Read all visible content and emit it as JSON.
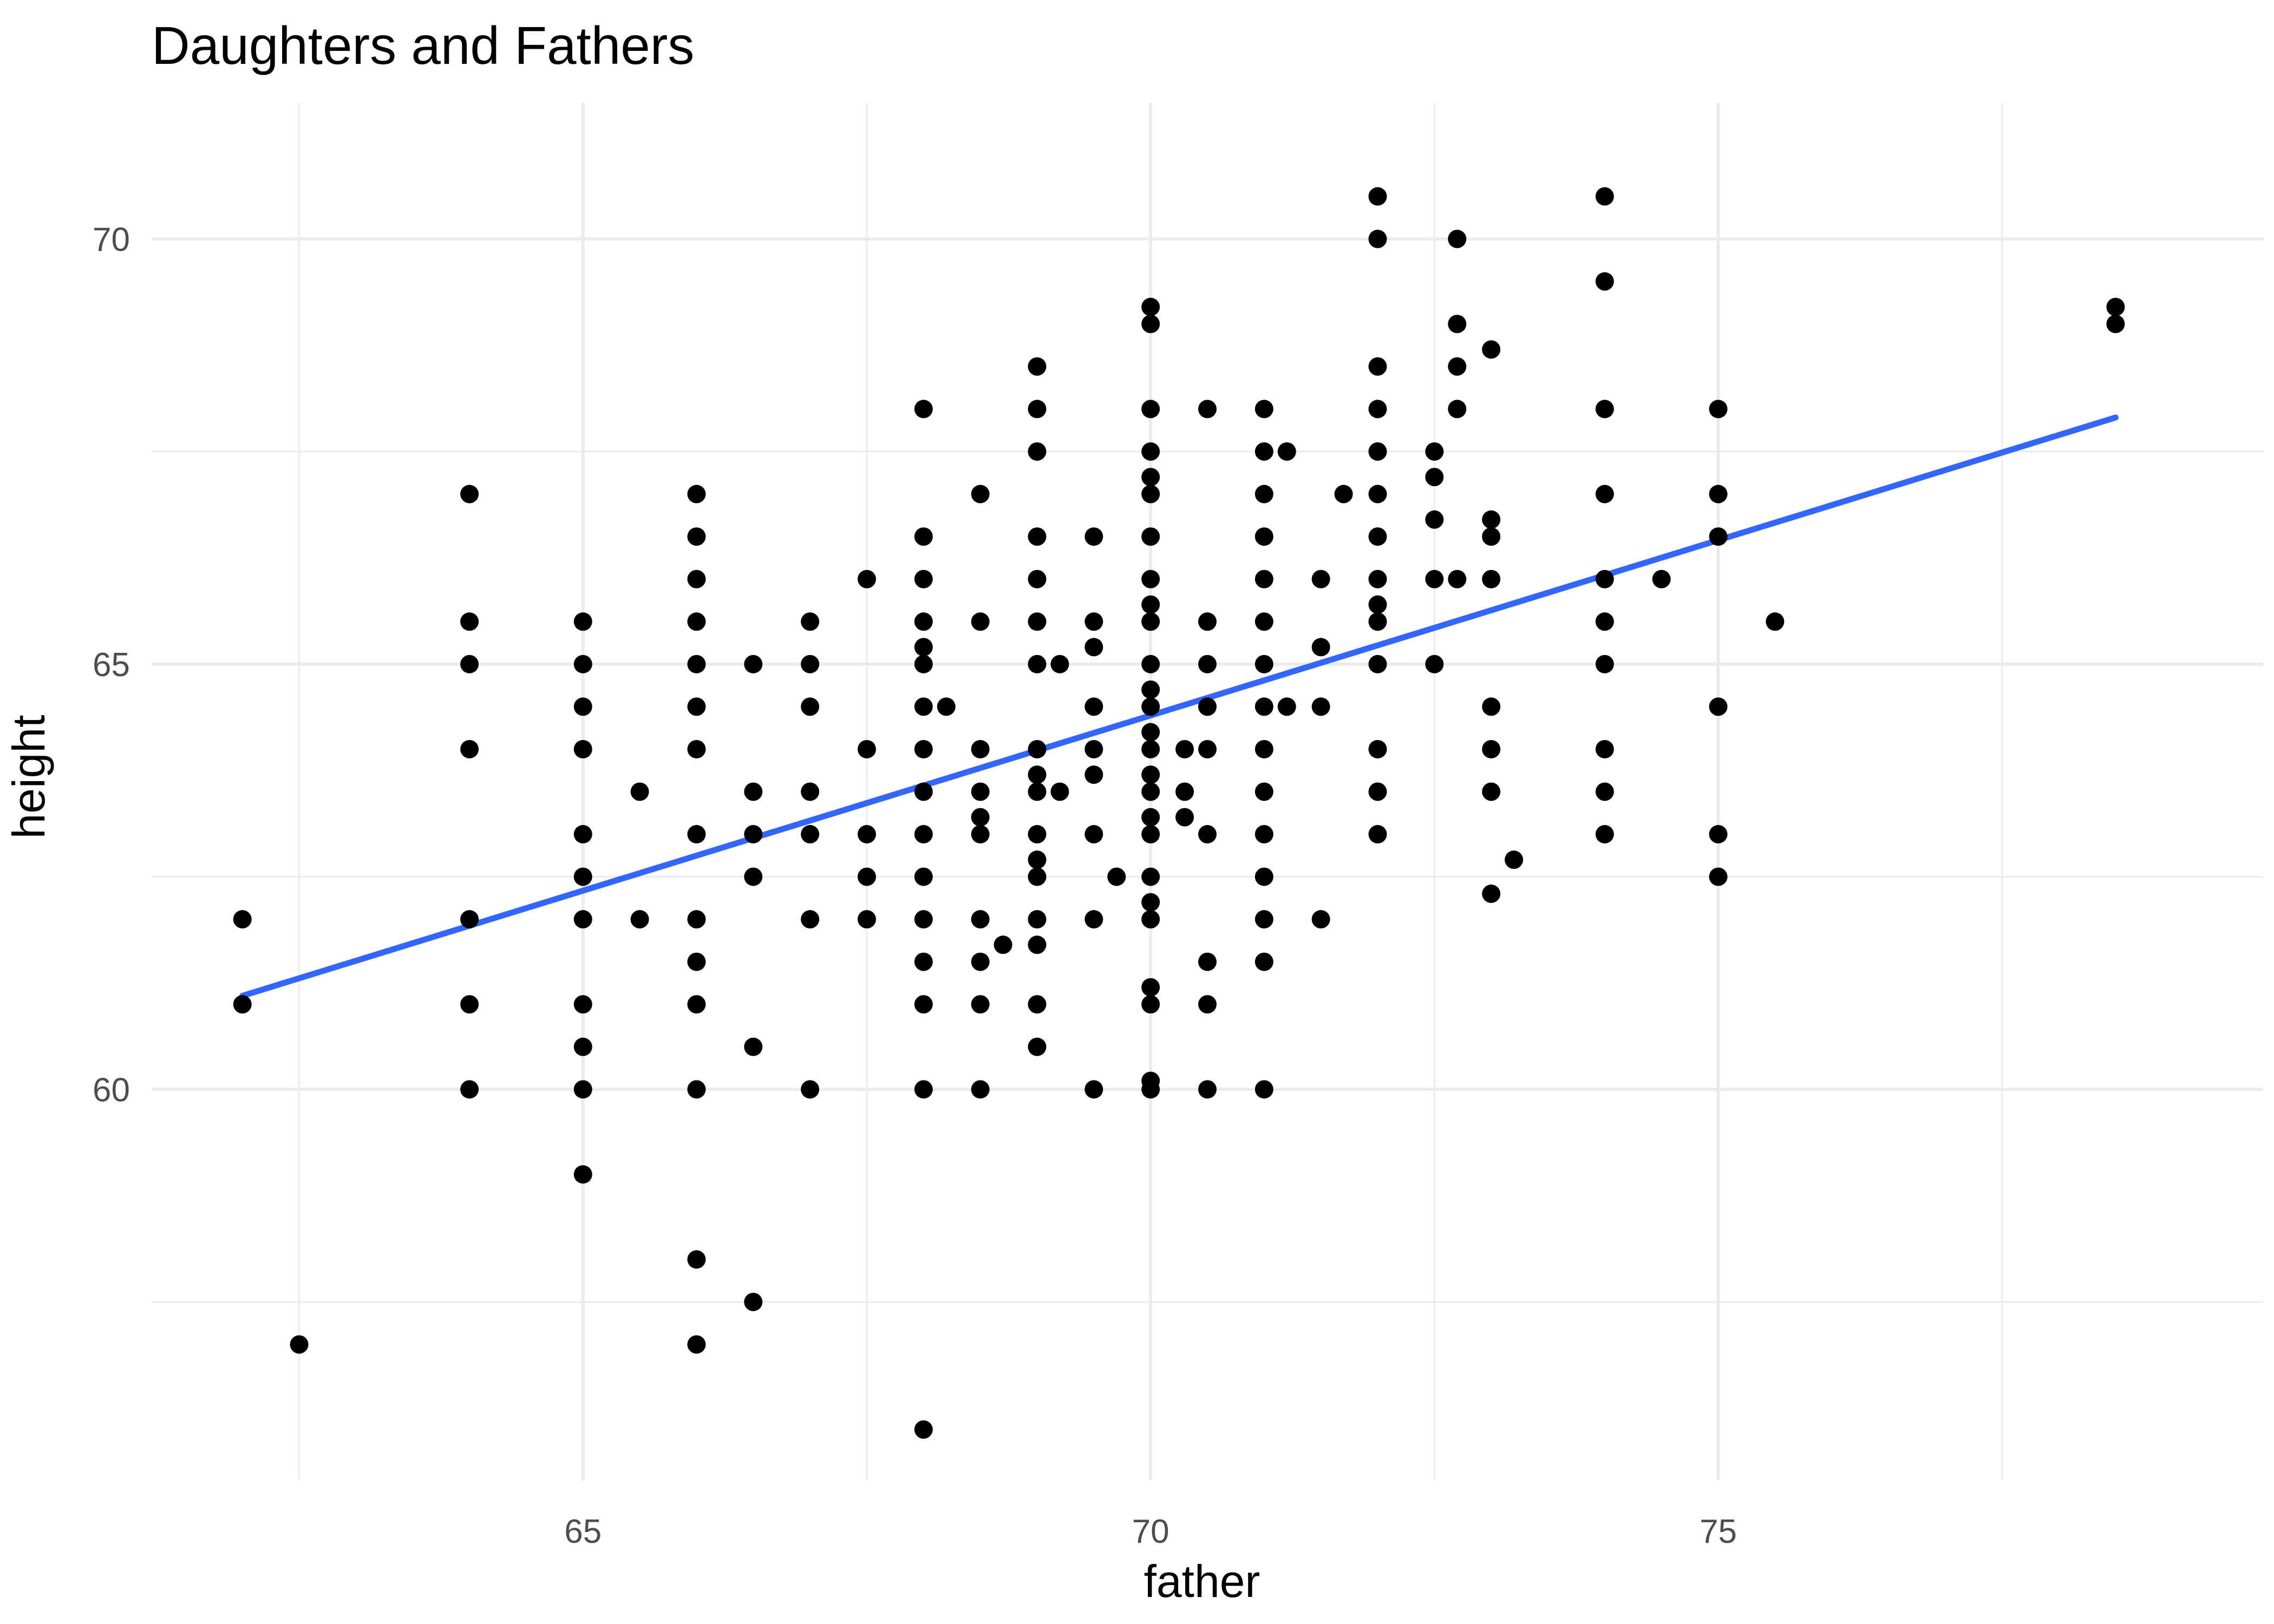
{
  "chart_data": {
    "type": "scatter",
    "title": "Daughters and Fathers",
    "xlabel": "father",
    "ylabel": "height",
    "xlim": [
      61.2,
      79.8
    ],
    "ylim": [
      55.4,
      71.6
    ],
    "x_major_ticks": [
      65,
      70,
      75
    ],
    "x_minor_ticks": [
      62.5,
      67.5,
      72.5,
      77.5
    ],
    "y_major_ticks": [
      60,
      65,
      70
    ],
    "y_minor_ticks": [
      57.5,
      62.5,
      67.5
    ],
    "grid": true,
    "legend": "none",
    "point_color": "#000000",
    "line_color": "#3366ff",
    "regression_line": {
      "x": [
        62.0,
        78.5
      ],
      "y": [
        61.1,
        67.9
      ]
    },
    "points": [
      [
        62.0,
        62.0
      ],
      [
        62.0,
        61.0
      ],
      [
        62.5,
        57.0
      ],
      [
        64.0,
        67.0
      ],
      [
        64.0,
        65.5
      ],
      [
        64.0,
        65.0
      ],
      [
        64.0,
        64.0
      ],
      [
        64.0,
        62.0
      ],
      [
        64.0,
        61.0
      ],
      [
        64.0,
        60.0
      ],
      [
        65.0,
        65.5
      ],
      [
        65.0,
        65.0
      ],
      [
        65.0,
        64.5
      ],
      [
        65.0,
        64.0
      ],
      [
        65.0,
        63.0
      ],
      [
        65.0,
        62.5
      ],
      [
        65.0,
        62.0
      ],
      [
        65.0,
        61.0
      ],
      [
        65.0,
        60.5
      ],
      [
        65.0,
        60.0
      ],
      [
        65.0,
        59.0
      ],
      [
        65.5,
        63.5
      ],
      [
        65.5,
        62.0
      ],
      [
        66.0,
        67.0
      ],
      [
        66.0,
        66.5
      ],
      [
        66.0,
        66.0
      ],
      [
        66.0,
        65.5
      ],
      [
        66.0,
        65.0
      ],
      [
        66.0,
        64.5
      ],
      [
        66.0,
        64.0
      ],
      [
        66.0,
        63.0
      ],
      [
        66.0,
        62.0
      ],
      [
        66.0,
        61.5
      ],
      [
        66.0,
        61.0
      ],
      [
        66.0,
        60.0
      ],
      [
        66.0,
        58.0
      ],
      [
        66.0,
        57.0
      ],
      [
        66.5,
        65.0
      ],
      [
        66.5,
        63.5
      ],
      [
        66.5,
        63.0
      ],
      [
        66.5,
        62.5
      ],
      [
        66.5,
        60.5
      ],
      [
        66.5,
        57.5
      ],
      [
        67.0,
        65.5
      ],
      [
        67.0,
        65.0
      ],
      [
        67.0,
        64.5
      ],
      [
        67.0,
        63.5
      ],
      [
        67.0,
        63.0
      ],
      [
        67.0,
        62.0
      ],
      [
        67.0,
        60.0
      ],
      [
        67.5,
        66.0
      ],
      [
        67.5,
        64.0
      ],
      [
        67.5,
        63.0
      ],
      [
        67.5,
        62.5
      ],
      [
        67.5,
        62.0
      ],
      [
        68.0,
        68.0
      ],
      [
        68.0,
        66.5
      ],
      [
        68.0,
        66.0
      ],
      [
        68.0,
        65.5
      ],
      [
        68.0,
        65.2
      ],
      [
        68.0,
        65.0
      ],
      [
        68.0,
        64.5
      ],
      [
        68.0,
        64.0
      ],
      [
        68.0,
        63.5
      ],
      [
        68.0,
        63.0
      ],
      [
        68.0,
        62.5
      ],
      [
        68.0,
        62.0
      ],
      [
        68.0,
        61.5
      ],
      [
        68.0,
        61.0
      ],
      [
        68.0,
        60.0
      ],
      [
        68.0,
        56.0
      ],
      [
        68.2,
        64.5
      ],
      [
        68.5,
        67.0
      ],
      [
        68.5,
        65.5
      ],
      [
        68.5,
        64.0
      ],
      [
        68.5,
        63.5
      ],
      [
        68.5,
        63.2
      ],
      [
        68.5,
        63.0
      ],
      [
        68.5,
        62.0
      ],
      [
        68.5,
        61.5
      ],
      [
        68.5,
        61.0
      ],
      [
        68.5,
        60.0
      ],
      [
        68.7,
        61.7
      ],
      [
        69.0,
        68.5
      ],
      [
        69.0,
        68.0
      ],
      [
        69.0,
        67.5
      ],
      [
        69.0,
        66.5
      ],
      [
        69.0,
        66.0
      ],
      [
        69.0,
        65.5
      ],
      [
        69.0,
        65.0
      ],
      [
        69.0,
        64.0
      ],
      [
        69.0,
        63.7
      ],
      [
        69.0,
        63.5
      ],
      [
        69.0,
        63.0
      ],
      [
        69.0,
        62.7
      ],
      [
        69.0,
        62.5
      ],
      [
        69.0,
        62.0
      ],
      [
        69.0,
        61.7
      ],
      [
        69.0,
        61.0
      ],
      [
        69.0,
        60.5
      ],
      [
        69.2,
        65.0
      ],
      [
        69.2,
        63.5
      ],
      [
        69.5,
        66.5
      ],
      [
        69.5,
        65.5
      ],
      [
        69.5,
        65.2
      ],
      [
        69.5,
        64.5
      ],
      [
        69.5,
        64.0
      ],
      [
        69.5,
        63.7
      ],
      [
        69.5,
        63.0
      ],
      [
        69.5,
        62.0
      ],
      [
        69.5,
        60.0
      ],
      [
        69.7,
        62.5
      ],
      [
        70.0,
        69.2
      ],
      [
        70.0,
        69.0
      ],
      [
        70.0,
        68.0
      ],
      [
        70.0,
        67.5
      ],
      [
        70.0,
        67.2
      ],
      [
        70.0,
        67.0
      ],
      [
        70.0,
        66.5
      ],
      [
        70.0,
        66.0
      ],
      [
        70.0,
        65.7
      ],
      [
        70.0,
        65.5
      ],
      [
        70.0,
        65.0
      ],
      [
        70.0,
        64.7
      ],
      [
        70.0,
        64.5
      ],
      [
        70.0,
        64.2
      ],
      [
        70.0,
        64.0
      ],
      [
        70.0,
        63.7
      ],
      [
        70.0,
        63.5
      ],
      [
        70.0,
        63.2
      ],
      [
        70.0,
        63.0
      ],
      [
        70.0,
        62.5
      ],
      [
        70.0,
        62.2
      ],
      [
        70.0,
        62.0
      ],
      [
        70.0,
        61.2
      ],
      [
        70.0,
        61.0
      ],
      [
        70.0,
        60.1
      ],
      [
        70.0,
        60.0
      ],
      [
        70.3,
        64.0
      ],
      [
        70.3,
        63.5
      ],
      [
        70.3,
        63.2
      ],
      [
        70.5,
        68.0
      ],
      [
        70.5,
        65.5
      ],
      [
        70.5,
        65.0
      ],
      [
        70.5,
        64.5
      ],
      [
        70.5,
        64.0
      ],
      [
        70.5,
        63.0
      ],
      [
        70.5,
        61.5
      ],
      [
        70.5,
        61.0
      ],
      [
        70.5,
        60.0
      ],
      [
        71.0,
        68.0
      ],
      [
        71.0,
        67.5
      ],
      [
        71.0,
        67.0
      ],
      [
        71.0,
        66.5
      ],
      [
        71.0,
        66.0
      ],
      [
        71.0,
        65.5
      ],
      [
        71.0,
        65.0
      ],
      [
        71.0,
        64.5
      ],
      [
        71.0,
        64.0
      ],
      [
        71.0,
        63.5
      ],
      [
        71.0,
        63.0
      ],
      [
        71.0,
        62.5
      ],
      [
        71.0,
        62.0
      ],
      [
        71.0,
        61.5
      ],
      [
        71.0,
        60.0
      ],
      [
        71.2,
        67.5
      ],
      [
        71.2,
        64.5
      ],
      [
        71.5,
        66.0
      ],
      [
        71.5,
        65.2
      ],
      [
        71.5,
        64.5
      ],
      [
        71.5,
        62.0
      ],
      [
        71.7,
        67.0
      ],
      [
        72.0,
        70.5
      ],
      [
        72.0,
        70.0
      ],
      [
        72.0,
        68.5
      ],
      [
        72.0,
        68.0
      ],
      [
        72.0,
        67.5
      ],
      [
        72.0,
        67.0
      ],
      [
        72.0,
        66.5
      ],
      [
        72.0,
        66.0
      ],
      [
        72.0,
        65.7
      ],
      [
        72.0,
        65.5
      ],
      [
        72.0,
        65.0
      ],
      [
        72.0,
        64.0
      ],
      [
        72.0,
        63.5
      ],
      [
        72.0,
        63.0
      ],
      [
        72.5,
        67.5
      ],
      [
        72.5,
        67.2
      ],
      [
        72.5,
        66.7
      ],
      [
        72.5,
        66.0
      ],
      [
        72.5,
        65.0
      ],
      [
        72.7,
        70.0
      ],
      [
        72.7,
        69.0
      ],
      [
        72.7,
        68.5
      ],
      [
        72.7,
        68.0
      ],
      [
        72.7,
        66.0
      ],
      [
        73.0,
        68.7
      ],
      [
        73.0,
        66.7
      ],
      [
        73.0,
        66.5
      ],
      [
        73.0,
        66.0
      ],
      [
        73.0,
        64.5
      ],
      [
        73.0,
        64.0
      ],
      [
        73.0,
        63.5
      ],
      [
        73.0,
        62.3
      ],
      [
        73.2,
        62.7
      ],
      [
        74.0,
        70.5
      ],
      [
        74.0,
        69.5
      ],
      [
        74.0,
        68.0
      ],
      [
        74.0,
        67.0
      ],
      [
        74.0,
        66.0
      ],
      [
        74.0,
        65.5
      ],
      [
        74.0,
        65.0
      ],
      [
        74.0,
        64.0
      ],
      [
        74.0,
        63.5
      ],
      [
        74.0,
        63.0
      ],
      [
        74.5,
        66.0
      ],
      [
        75.0,
        68.0
      ],
      [
        75.0,
        67.0
      ],
      [
        75.0,
        66.5
      ],
      [
        75.0,
        64.5
      ],
      [
        75.0,
        63.0
      ],
      [
        75.0,
        62.5
      ],
      [
        75.5,
        65.5
      ],
      [
        78.5,
        69.2
      ],
      [
        78.5,
        69.0
      ]
    ]
  }
}
